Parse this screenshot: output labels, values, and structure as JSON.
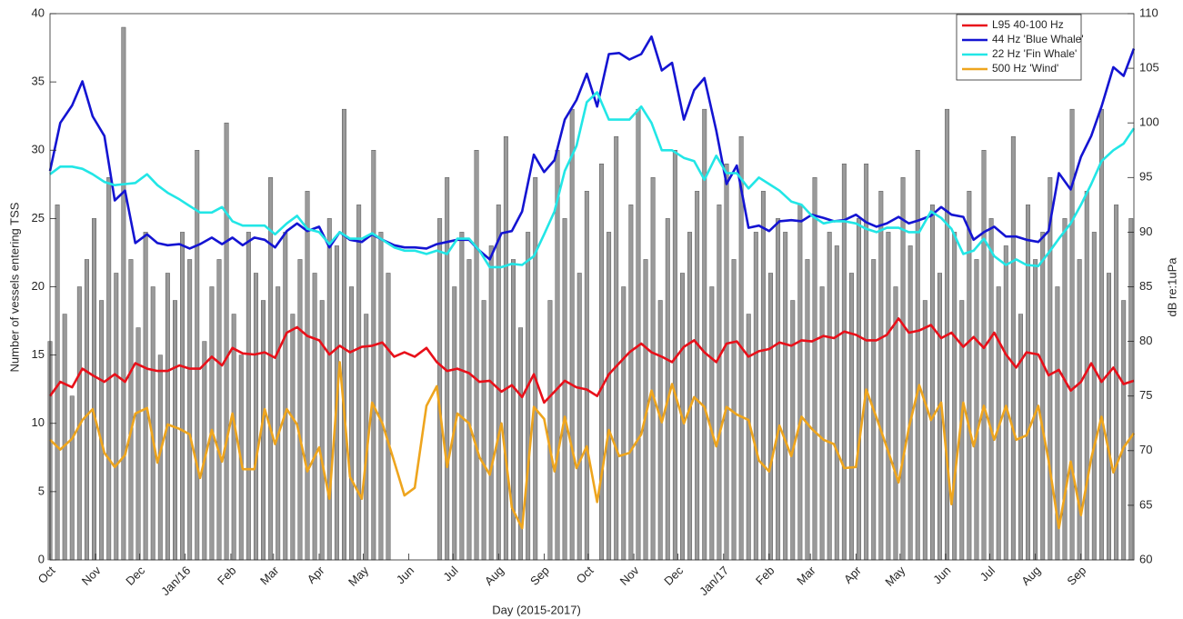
{
  "chart_data": {
    "type": "combo",
    "xlabel": "Day (2015-2017)",
    "ylabel": "Number of vessels entering TSS",
    "y2label": "dB re:1uPa",
    "legend": "upper right",
    "xlim": [
      0,
      737
    ],
    "xticks": [
      {
        "value": 0,
        "label": "Oct"
      },
      {
        "value": 31,
        "label": "Nov"
      },
      {
        "value": 61,
        "label": "Dec"
      },
      {
        "value": 92,
        "label": "Jan/16"
      },
      {
        "value": 123,
        "label": "Feb"
      },
      {
        "value": 152,
        "label": "Mar"
      },
      {
        "value": 183,
        "label": "Apr"
      },
      {
        "value": 213,
        "label": "May"
      },
      {
        "value": 244,
        "label": "Jun"
      },
      {
        "value": 274,
        "label": "Jul"
      },
      {
        "value": 305,
        "label": "Aug"
      },
      {
        "value": 336,
        "label": "Sep"
      },
      {
        "value": 366,
        "label": "Oct"
      },
      {
        "value": 397,
        "label": "Nov"
      },
      {
        "value": 427,
        "label": "Dec"
      },
      {
        "value": 458,
        "label": "Jan/17"
      },
      {
        "value": 489,
        "label": "Feb"
      },
      {
        "value": 517,
        "label": "Mar"
      },
      {
        "value": 548,
        "label": "Apr"
      },
      {
        "value": 578,
        "label": "May"
      },
      {
        "value": 609,
        "label": "Jun"
      },
      {
        "value": 639,
        "label": "Jul"
      },
      {
        "value": 670,
        "label": "Aug"
      },
      {
        "value": 701,
        "label": "Sep"
      }
    ],
    "ylim": [
      0,
      40
    ],
    "yticks": [
      0,
      5,
      10,
      15,
      20,
      25,
      30,
      35,
      40
    ],
    "y2lim": [
      60,
      110
    ],
    "y2ticks": [
      60,
      65,
      70,
      75,
      80,
      85,
      90,
      95,
      100,
      105,
      110
    ],
    "x": [
      0,
      7,
      15,
      22,
      29,
      37,
      44,
      51,
      58,
      66,
      73,
      80,
      88,
      95,
      102,
      110,
      117,
      124,
      131,
      139,
      146,
      153,
      161,
      168,
      175,
      183,
      190,
      197,
      204,
      212,
      219,
      226,
      234,
      241,
      248,
      256,
      263,
      270,
      277,
      285,
      292,
      299,
      307,
      314,
      321,
      329,
      336,
      343,
      350,
      358,
      365,
      372,
      380,
      387,
      394,
      402,
      409,
      416,
      423,
      431,
      438,
      445,
      453,
      460,
      467,
      475,
      482,
      489,
      496,
      504,
      511,
      518,
      526,
      533,
      540,
      548,
      555,
      562,
      569,
      577,
      584,
      591,
      599,
      606,
      613,
      621,
      628,
      635,
      642,
      650,
      657,
      664,
      672,
      679,
      686,
      694,
      701,
      708,
      715,
      723,
      730,
      737
    ],
    "series": [
      {
        "type": "bar",
        "color": "#9a9a9a",
        "x": [
          0,
          5,
          10,
          15,
          20,
          25,
          30,
          35,
          40,
          45,
          50,
          55,
          60,
          65,
          70,
          75,
          80,
          85,
          90,
          95,
          100,
          105,
          110,
          115,
          120,
          125,
          130,
          135,
          140,
          145,
          150,
          155,
          160,
          165,
          170,
          175,
          180,
          185,
          190,
          195,
          200,
          205,
          210,
          215,
          220,
          225,
          230,
          235,
          240,
          245,
          250,
          255,
          260,
          265,
          270,
          275,
          280,
          285,
          290,
          295,
          300,
          305,
          310,
          315,
          320,
          325,
          330,
          335,
          340,
          345,
          350,
          355,
          360,
          365,
          370,
          375,
          380,
          385,
          390,
          395,
          400,
          405,
          410,
          415,
          420,
          425,
          430,
          435,
          440,
          445,
          450,
          455,
          460,
          465,
          470,
          475,
          480,
          485,
          490,
          495,
          500,
          505,
          510,
          515,
          520,
          525,
          530,
          535,
          540,
          545,
          550,
          555,
          560,
          565,
          570,
          575,
          580,
          585,
          590,
          595,
          600,
          605,
          610,
          615,
          620,
          625,
          630,
          635,
          640,
          645,
          650,
          655,
          660,
          665,
          670,
          675,
          680,
          685,
          690,
          695,
          700,
          705,
          710,
          715,
          720,
          725,
          730,
          735
        ],
        "values": [
          16,
          26,
          18,
          12,
          20,
          22,
          25,
          19,
          28,
          21,
          39,
          22,
          17,
          24,
          20,
          15,
          21,
          19,
          24,
          22,
          30,
          16,
          20,
          22,
          32,
          18,
          15,
          24,
          21,
          19,
          28,
          20,
          24,
          18,
          22,
          27,
          21,
          19,
          25,
          23,
          33,
          20,
          26,
          18,
          30,
          24,
          21,
          null,
          null,
          null,
          null,
          null,
          null,
          25,
          28,
          20,
          24,
          22,
          30,
          19,
          23,
          26,
          31,
          22,
          17,
          24,
          28,
          null,
          19,
          30,
          25,
          33,
          21,
          27,
          null,
          29,
          24,
          31,
          20,
          26,
          33,
          22,
          28,
          19,
          25,
          30,
          21,
          24,
          27,
          33,
          20,
          26,
          29,
          22,
          31,
          18,
          24,
          27,
          21,
          25,
          24,
          19,
          26,
          22,
          28,
          20,
          24,
          23,
          29,
          21,
          25,
          29,
          22,
          27,
          24,
          20,
          28,
          23,
          30,
          19,
          26,
          21,
          33,
          24,
          19,
          27,
          22,
          30,
          25,
          20,
          23,
          31,
          18,
          26,
          22,
          24,
          28,
          20,
          25,
          33,
          22,
          27,
          24,
          33,
          21,
          26,
          19,
          25
        ]
      },
      {
        "type": "line",
        "axis": "y2",
        "name": "L95 40-100 Hz",
        "color": "#e8101a",
        "values": [
          75,
          76.3,
          75.8,
          77.5,
          76.9,
          76.3,
          77,
          76.3,
          78,
          77.5,
          77.3,
          77.3,
          77.8,
          77.5,
          77.5,
          78.6,
          77.8,
          79.4,
          78.9,
          78.8,
          79,
          78.5,
          80.8,
          81.3,
          80.5,
          80.1,
          78.8,
          79.6,
          79,
          79.5,
          79.6,
          79.9,
          78.6,
          79,
          78.6,
          79.4,
          78.1,
          77.3,
          77.5,
          77.1,
          76.3,
          76.4,
          75.4,
          76,
          74.9,
          77,
          74.4,
          75.4,
          76.4,
          75.8,
          75.6,
          75,
          77,
          78,
          79,
          79.8,
          79,
          78.6,
          78.1,
          79.5,
          80.1,
          79,
          78.1,
          79.8,
          80,
          78.6,
          79.1,
          79.3,
          79.9,
          79.6,
          80.1,
          80,
          80.5,
          80.3,
          80.9,
          80.6,
          80.1,
          80.1,
          80.6,
          82.1,
          80.8,
          81,
          81.5,
          80.3,
          80.8,
          79.5,
          80.4,
          79.4,
          80.8,
          78.8,
          77.6,
          79,
          78.8,
          76.9,
          77.4,
          75.5,
          76.3,
          78,
          76.3,
          77.6,
          76.1,
          76.4
        ]
      },
      {
        "type": "line",
        "axis": "y2",
        "name": "44 Hz 'Blue Whale'",
        "color": "#1414d2",
        "values": [
          95.6,
          100,
          101.6,
          103.8,
          100.6,
          98.8,
          92.9,
          93.8,
          89,
          89.8,
          89,
          88.8,
          88.9,
          88.5,
          88.9,
          89.5,
          88.9,
          89.5,
          88.8,
          89.5,
          89.3,
          88.6,
          90.1,
          90.8,
          90.1,
          90.5,
          88.6,
          90,
          89.3,
          89.1,
          89.8,
          89.3,
          88.8,
          88.6,
          88.6,
          88.5,
          88.9,
          89.1,
          89.3,
          89.3,
          88.3,
          87.5,
          89.9,
          90.1,
          91.9,
          97.1,
          95.5,
          96.6,
          100.3,
          102.1,
          104.5,
          101.5,
          106.3,
          106.4,
          105.8,
          106.3,
          107.9,
          104.8,
          105.5,
          100.3,
          103,
          104.1,
          99.3,
          94.4,
          96.1,
          90.4,
          90.6,
          90.1,
          91,
          91.1,
          91,
          91.6,
          91.3,
          91,
          91.1,
          91.6,
          90.9,
          90.5,
          90.8,
          91.4,
          90.8,
          91.1,
          91.5,
          92.3,
          91.6,
          91.4,
          89.3,
          90,
          90.5,
          89.6,
          89.6,
          89.3,
          89.1,
          90.1,
          95.4,
          93.9,
          96.9,
          98.8,
          101.5,
          105.1,
          104.3,
          106.8
        ]
      },
      {
        "type": "line",
        "axis": "y2",
        "name": "22 Hz 'Fin Whale'",
        "color": "#22e6e6",
        "values": [
          95.3,
          96,
          96,
          95.8,
          95.3,
          94.6,
          94.3,
          94.4,
          94.5,
          95.3,
          94.3,
          93.6,
          93,
          92.4,
          91.8,
          91.8,
          92.3,
          91,
          90.6,
          90.6,
          90.6,
          89.8,
          90.8,
          91.5,
          90.3,
          90,
          88.9,
          90,
          89.4,
          89.4,
          89.9,
          89.3,
          88.6,
          88.3,
          88.3,
          88,
          88.3,
          88,
          89.4,
          89.4,
          88.3,
          86.8,
          86.8,
          87.1,
          87,
          87.8,
          89.8,
          91.9,
          95.6,
          97.9,
          101.9,
          102.8,
          100.3,
          100.3,
          100.3,
          101.5,
          100,
          97.5,
          97.5,
          96.8,
          96.5,
          94.8,
          97,
          95.4,
          95.4,
          94,
          95,
          94.4,
          93.8,
          92.8,
          92.5,
          91.5,
          90.8,
          91,
          91,
          90.8,
          90.3,
          90,
          90.4,
          90.4,
          90,
          90,
          91.9,
          91.3,
          90.3,
          88,
          88.3,
          89.4,
          87.8,
          87,
          87.5,
          87,
          86.9,
          88.1,
          89.4,
          90.8,
          92.5,
          94.4,
          96.5,
          97.5,
          98.1,
          99.5
        ]
      },
      {
        "type": "line",
        "axis": "y2",
        "name": "500 Hz 'Wind'",
        "color": "#eea51e",
        "values": [
          71,
          70.1,
          71.1,
          72.8,
          73.8,
          69.8,
          68.5,
          69.6,
          73.4,
          73.9,
          68.9,
          72.4,
          72,
          71.5,
          67.5,
          71.9,
          69,
          73.4,
          68.3,
          68.3,
          73.8,
          70.6,
          73.8,
          72.4,
          68.1,
          70.3,
          65.6,
          78.1,
          67.6,
          65.6,
          74.4,
          72.5,
          69,
          65.9,
          66.6,
          74.1,
          75.9,
          68.5,
          73.4,
          72.5,
          69.4,
          67.8,
          72.5,
          64.8,
          62.9,
          74,
          72.9,
          68.1,
          73.1,
          68.4,
          70.4,
          65.3,
          71.9,
          69.5,
          69.8,
          71.5,
          75.5,
          72.6,
          76.1,
          72.5,
          74.9,
          74,
          70.4,
          74,
          73.3,
          72.8,
          69.1,
          68.1,
          72.3,
          69.5,
          73.1,
          72,
          71,
          70.6,
          68.4,
          68.5,
          75.6,
          73,
          70.3,
          67.1,
          72.1,
          76,
          72.8,
          74.4,
          65.1,
          74.4,
          70.4,
          74.1,
          71,
          74.1,
          71,
          71.4,
          74.1,
          69.1,
          62.9,
          69,
          64.1,
          69.3,
          73.1,
          68,
          70.3,
          71.6
        ]
      }
    ]
  }
}
